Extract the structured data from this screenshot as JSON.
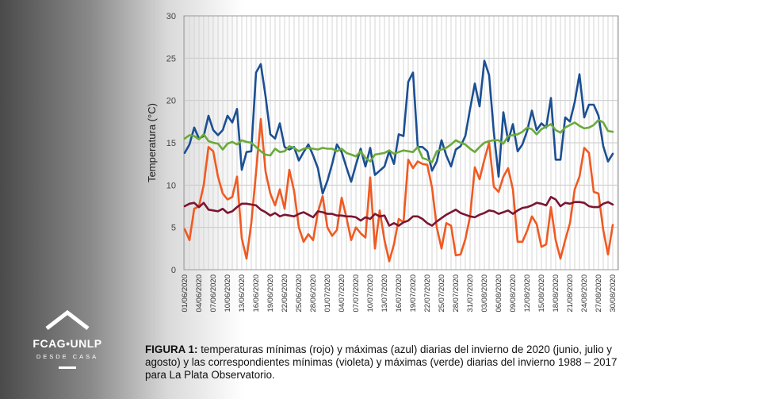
{
  "logo": {
    "name": "FCAG•UNLP",
    "subtitle": "DESDE CASA"
  },
  "caption": {
    "label": "FIGURA 1:",
    "text": "temperaturas mínimas (rojo) y máximas (azul) diarias del invierno  de 2020 (junio, julio y agosto)  y las correspondientes mínimas (violeta) y máximas (verde) diarias del invierno 1988 – 2017 para La Plata Observatorio."
  },
  "chart_data": {
    "type": "line",
    "ylabel": "Temperatura (°C)",
    "ylim": [
      0,
      30
    ],
    "yticks": [
      0,
      5,
      10,
      15,
      20,
      25,
      30
    ],
    "grid": true,
    "x_start": "2020-06-01",
    "x_count": 92,
    "xtick_labels": [
      "01/06/2020",
      "04/06/2020",
      "07/06/2020",
      "10/06/2020",
      "13/06/2020",
      "16/06/2020",
      "19/06/2020",
      "22/06/2020",
      "25/06/2020",
      "28/06/2020",
      "01/07/2020",
      "04/07/2020",
      "07/07/2020",
      "10/07/2020",
      "13/07/2020",
      "16/07/2020",
      "19/07/2020",
      "22/07/2020",
      "25/07/2020",
      "28/07/2020",
      "31/07/2020",
      "03/08/2020",
      "06/08/2020",
      "09/08/2020",
      "12/08/2020",
      "15/08/2020",
      "18/08/2020",
      "21/08/2020",
      "24/08/2020",
      "27/08/2020",
      "30/08/2020"
    ],
    "series": [
      {
        "name": "",
        "color": "#1b4f93",
        "values": [
          13.8,
          14.8,
          16.8,
          15.5,
          15.8,
          18.2,
          16.5,
          15.9,
          16.5,
          18.2,
          17.4,
          19.0,
          11.8,
          13.9,
          14.0,
          23.3,
          24.3,
          20.5,
          16.0,
          15.5,
          17.3,
          14.5,
          14.2,
          14.5,
          12.9,
          13.9,
          14.8,
          13.5,
          12.0,
          9.0,
          10.5,
          12.5,
          14.8,
          13.9,
          12.1,
          10.4,
          12.4,
          14.3,
          12.2,
          14.4,
          11.2,
          11.7,
          12.2,
          14.0,
          12.5,
          16.0,
          15.8,
          22.2,
          23.3,
          14.5,
          14.5,
          14.0,
          11.7,
          12.8,
          15.3,
          13.5,
          12.2,
          14.2,
          14.6,
          15.8,
          19.0,
          22.0,
          19.3,
          24.7,
          23.0,
          16.2,
          11.0,
          18.6,
          15.2,
          17.2,
          14.0,
          14.8,
          16.4,
          18.8,
          16.5,
          17.3,
          16.8,
          20.3,
          13.0,
          13.0,
          18.0,
          17.5,
          19.8,
          23.1,
          18.0,
          19.5,
          19.5,
          18.2,
          14.6,
          12.8,
          13.7,
          null
        ]
      },
      {
        "name": "",
        "color": "#f05a22",
        "values": [
          4.8,
          3.5,
          7.2,
          7.5,
          10.0,
          14.5,
          14.0,
          11.0,
          9.0,
          8.3,
          8.6,
          11.0,
          3.7,
          1.3,
          5.5,
          11.5,
          17.8,
          11.6,
          9.0,
          7.6,
          9.5,
          7.2,
          11.8,
          9.3,
          5.0,
          3.3,
          4.2,
          3.5,
          6.8,
          8.7,
          5.0,
          4.0,
          4.7,
          8.5,
          6.2,
          3.5,
          5.0,
          4.3,
          3.8,
          10.9,
          2.5,
          7.0,
          3.5,
          1.0,
          3.0,
          6.0,
          5.6,
          13.0,
          12.0,
          12.8,
          12.5,
          12.4,
          9.7,
          5.0,
          2.5,
          5.5,
          5.2,
          1.7,
          1.8,
          3.6,
          6.3,
          12.1,
          10.7,
          13.0,
          15.0,
          9.8,
          9.2,
          11.0,
          12.0,
          9.5,
          3.3,
          3.3,
          4.6,
          6.3,
          5.4,
          2.7,
          3.0,
          7.4,
          3.5,
          1.3,
          3.5,
          5.5,
          9.5,
          11.0,
          14.4,
          13.8,
          9.2,
          9.0,
          4.7,
          1.8,
          5.3,
          null
        ]
      },
      {
        "name": "",
        "color": "#7b1530",
        "values": [
          7.5,
          7.8,
          7.9,
          7.4,
          7.9,
          7.1,
          7.0,
          6.9,
          7.2,
          6.7,
          6.9,
          7.4,
          7.8,
          7.8,
          7.7,
          7.6,
          7.1,
          6.8,
          6.4,
          6.7,
          6.3,
          6.5,
          6.4,
          6.3,
          6.6,
          6.8,
          6.5,
          6.2,
          6.9,
          6.8,
          6.6,
          6.6,
          6.4,
          6.4,
          6.3,
          6.3,
          6.2,
          5.8,
          6.2,
          6.0,
          6.6,
          6.3,
          6.4,
          5.2,
          5.5,
          5.2,
          5.6,
          5.8,
          6.3,
          6.3,
          6.0,
          5.5,
          5.2,
          5.7,
          6.1,
          6.5,
          6.8,
          7.1,
          6.7,
          6.5,
          6.3,
          6.2,
          6.5,
          6.7,
          7.0,
          6.9,
          6.6,
          6.8,
          7.0,
          6.6,
          7.0,
          7.3,
          7.4,
          7.6,
          7.9,
          7.8,
          7.6,
          8.6,
          8.3,
          7.5,
          7.9,
          7.8,
          8.0,
          8.0,
          7.9,
          7.5,
          7.4,
          7.4,
          7.8,
          8.0,
          7.7,
          null
        ]
      },
      {
        "name": "",
        "color": "#6aaa3a",
        "values": [
          15.5,
          15.9,
          15.8,
          15.4,
          16.0,
          15.2,
          15.0,
          14.9,
          14.2,
          14.9,
          15.1,
          14.8,
          15.3,
          15.1,
          15.0,
          14.5,
          14.0,
          13.6,
          13.5,
          14.3,
          13.9,
          14.0,
          14.6,
          14.4,
          14.0,
          14.3,
          14.4,
          14.3,
          14.2,
          14.4,
          14.3,
          14.3,
          14.0,
          14.3,
          13.8,
          13.6,
          13.4,
          14.0,
          13.2,
          12.8,
          13.6,
          13.7,
          13.8,
          14.1,
          13.7,
          13.9,
          14.1,
          14.0,
          13.9,
          14.5,
          13.2,
          13.0,
          12.7,
          14.0,
          14.2,
          14.4,
          14.8,
          15.3,
          15.0,
          14.8,
          14.3,
          13.9,
          14.5,
          15.0,
          15.2,
          15.3,
          15.3,
          14.9,
          15.8,
          15.9,
          16.0,
          16.3,
          16.8,
          16.6,
          16.0,
          16.6,
          16.9,
          17.2,
          16.5,
          16.2,
          16.8,
          17.1,
          17.4,
          17.0,
          16.7,
          16.8,
          17.1,
          17.7,
          17.4,
          16.4,
          16.3,
          null
        ]
      }
    ]
  }
}
